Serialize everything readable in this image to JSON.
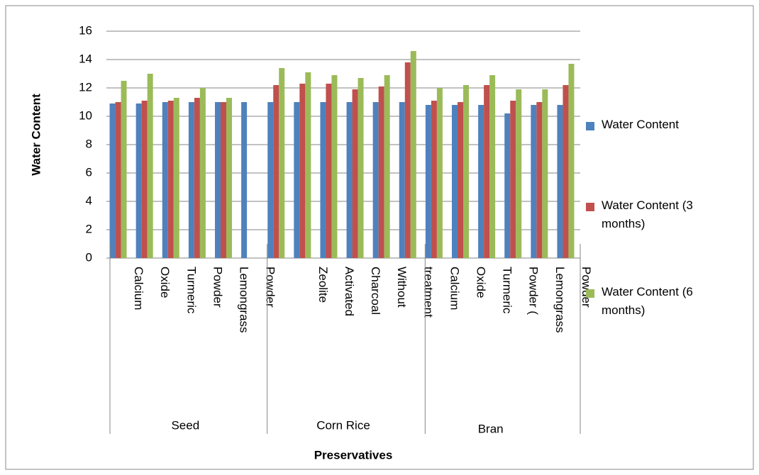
{
  "chart_data": {
    "type": "bar",
    "y_label": "Water Content",
    "x_label": "Preservatives",
    "categories": [
      "Calcium",
      "Oxide",
      "Turmeric",
      "Powder",
      "Lemongrass",
      "Powder",
      null,
      "Zeolite",
      "Activated",
      "Charcoal",
      "Without",
      "treatment",
      "Calcium",
      "Oxide",
      "Turmeric",
      "Powder (",
      "Lemongrass",
      "Powder"
    ],
    "groups": [
      "Seed",
      "Corn Rice",
      "Bran"
    ],
    "series": [
      {
        "name": "Water Content",
        "color": "#4f81bd",
        "values": [
          10.9,
          10.9,
          11,
          11,
          11,
          11,
          11,
          11,
          11,
          11,
          11,
          11,
          10.8,
          10.8,
          10.8,
          10.2,
          10.8,
          10.8
        ]
      },
      {
        "name": "Water Content (3 months)",
        "color": "#c0504d",
        "values": [
          11,
          11.1,
          11.1,
          11.3,
          11,
          null,
          12.2,
          12.3,
          12.3,
          11.9,
          12.1,
          13.8,
          11.1,
          11,
          12.2,
          11.1,
          11,
          12.2
        ]
      },
      {
        "name": "Water Content (6 months)",
        "color": "#9bbb59",
        "values": [
          12.5,
          13,
          11.3,
          12,
          11.3,
          null,
          13.4,
          13.1,
          12.9,
          12.7,
          12.9,
          14.6,
          12,
          12.2,
          12.9,
          11.9,
          11.9,
          13.7
        ]
      }
    ],
    "ylim": [
      0,
      16
    ],
    "yticks": [
      0,
      2,
      4,
      6,
      8,
      10,
      12,
      14,
      16
    ],
    "grid": true,
    "legend": "right"
  }
}
